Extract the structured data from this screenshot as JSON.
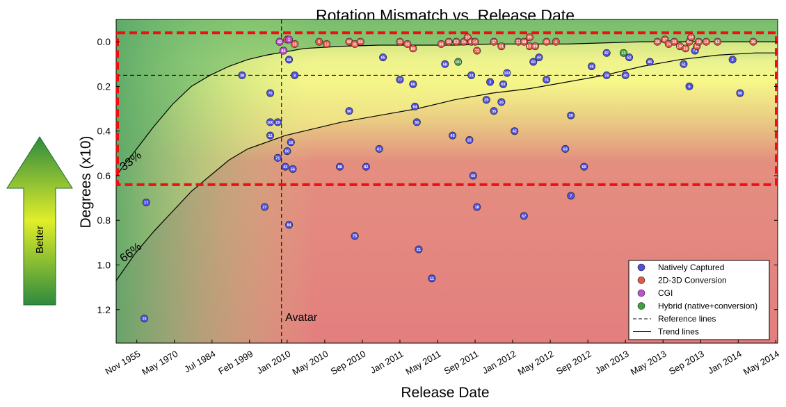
{
  "better_label": "Better",
  "chart_data": {
    "type": "scatter",
    "title": "Rotation Mismatch vs. Release Date",
    "xlabel": "Release Date",
    "ylabel": "Degrees (x10)",
    "y_inverted": true,
    "ylim": [
      1.35,
      -0.1
    ],
    "yticks": [
      "0.0",
      "0.2",
      "0.4",
      "0.6",
      "0.8",
      "1.0",
      "1.2"
    ],
    "xticks": [
      "Nov 1955",
      "May 1970",
      "Jul 1984",
      "Feb 1999",
      "Jan 2010",
      "May 2010",
      "Sep 2010",
      "Jan 2011",
      "May 2011",
      "Sep 2011",
      "Jan 2012",
      "May 2012",
      "Sep 2012",
      "Jan 2013",
      "May 2013",
      "Sep 2013",
      "Jan 2014",
      "May 2014"
    ],
    "xlim": [
      0,
      17.6
    ],
    "x_note": "x values are positions on the tick-indexed release-date axis (tick i at value i)",
    "percent_labels": [
      {
        "text": "33%",
        "x": 0.2,
        "y": 0.58
      },
      {
        "text": "66%",
        "x": 0.2,
        "y": 0.99
      }
    ],
    "annotation": {
      "text": "Avatar",
      "x": 4.5,
      "y": 1.25
    },
    "reference_lines": {
      "x": 4.4,
      "y": 0.15
    },
    "highlight_box": {
      "x_range": [
        0,
        17.6
      ],
      "y_range": [
        -0.04,
        0.64
      ]
    },
    "trend_lines": [
      {
        "name": "33%",
        "x": [
          0,
          0.5,
          1,
          1.5,
          2,
          2.5,
          3,
          3.5,
          4,
          4.5,
          5,
          6,
          7,
          8,
          9,
          10,
          12,
          14,
          17.6
        ],
        "y": [
          0.6,
          0.49,
          0.38,
          0.28,
          0.2,
          0.15,
          0.11,
          0.08,
          0.06,
          0.045,
          0.03,
          0.02,
          0.015,
          0.015,
          0.015,
          0.01,
          0.01,
          0.0,
          0.0
        ]
      },
      {
        "name": "66%",
        "x": [
          0,
          0.5,
          1,
          1.5,
          2,
          2.5,
          3,
          3.5,
          4,
          4.5,
          5,
          6,
          7,
          8,
          9,
          10,
          11,
          12,
          13,
          14,
          15,
          16,
          17,
          17.6
        ],
        "y": [
          1.07,
          0.95,
          0.85,
          0.76,
          0.67,
          0.6,
          0.53,
          0.48,
          0.45,
          0.42,
          0.4,
          0.36,
          0.33,
          0.3,
          0.26,
          0.23,
          0.21,
          0.18,
          0.15,
          0.11,
          0.08,
          0.06,
          0.05,
          0.05
        ]
      }
    ],
    "legend": {
      "placement": "bottom-right",
      "entries": [
        {
          "label": "Natively Captured",
          "kind": "marker",
          "color": "#5050e0"
        },
        {
          "label": "2D-3D Conversion",
          "kind": "marker",
          "color": "#e05a4a"
        },
        {
          "label": "CGI",
          "kind": "marker",
          "color": "#c050d0"
        },
        {
          "label": "Hybrid (native+conversion)",
          "kind": "marker",
          "color": "#40a040"
        },
        {
          "label": "Reference lines",
          "kind": "dashed"
        },
        {
          "label": "Trend lines",
          "kind": "solid"
        }
      ]
    },
    "series": [
      {
        "name": "Natively Captured",
        "color": "#5050e0",
        "points": [
          {
            "x": 0.8,
            "y": 0.72,
            "label": "17"
          },
          {
            "x": 0.75,
            "y": 1.24,
            "label": "15"
          },
          {
            "x": 3.35,
            "y": 0.15,
            "label": "38"
          },
          {
            "x": 3.95,
            "y": 0.74,
            "label": "27"
          },
          {
            "x": 4.1,
            "y": 0.23,
            "label": "70"
          },
          {
            "x": 4.1,
            "y": 0.36,
            "label": "100"
          },
          {
            "x": 4.1,
            "y": 0.42,
            "label": "12"
          },
          {
            "x": 4.3,
            "y": 0.36,
            "label": "29"
          },
          {
            "x": 4.3,
            "y": 0.52,
            "label": "71"
          },
          {
            "x": 4.5,
            "y": 0.56,
            "label": "43"
          },
          {
            "x": 4.6,
            "y": 0.08,
            "label": "68"
          },
          {
            "x": 4.55,
            "y": 0.49,
            "label": "50"
          },
          {
            "x": 4.65,
            "y": 0.45,
            "label": "16"
          },
          {
            "x": 4.7,
            "y": 0.57,
            "label": "56"
          },
          {
            "x": 4.6,
            "y": 0.82,
            "label": "84"
          },
          {
            "x": 4.75,
            "y": 0.15,
            "label": "8"
          },
          {
            "x": 5.95,
            "y": 0.56,
            "label": "88"
          },
          {
            "x": 6.2,
            "y": 0.31,
            "label": "96"
          },
          {
            "x": 6.35,
            "y": 0.87,
            "label": "75"
          },
          {
            "x": 6.65,
            "y": 0.56,
            "label": "82"
          },
          {
            "x": 7.0,
            "y": 0.48,
            "label": "61"
          },
          {
            "x": 7.1,
            "y": 0.07,
            "label": "65"
          },
          {
            "x": 7.55,
            "y": 0.17,
            "label": "77"
          },
          {
            "x": 7.9,
            "y": 0.19,
            "label": "66"
          },
          {
            "x": 7.95,
            "y": 0.29,
            "label": "64"
          },
          {
            "x": 8.0,
            "y": 0.36,
            "label": "55"
          },
          {
            "x": 8.05,
            "y": 0.93,
            "label": "21"
          },
          {
            "x": 8.4,
            "y": 1.06,
            "label": "11"
          },
          {
            "x": 8.75,
            "y": 0.1,
            "label": "58"
          },
          {
            "x": 8.95,
            "y": 0.42,
            "label": "45"
          },
          {
            "x": 9.4,
            "y": 0.44,
            "label": "22"
          },
          {
            "x": 9.45,
            "y": 0.15,
            "label": "24"
          },
          {
            "x": 9.5,
            "y": 0.6,
            "label": "60"
          },
          {
            "x": 9.6,
            "y": 0.74,
            "label": "18"
          },
          {
            "x": 9.85,
            "y": 0.26,
            "label": "25"
          },
          {
            "x": 9.95,
            "y": 0.18,
            "label": "3"
          },
          {
            "x": 10.05,
            "y": 0.31,
            "label": "35"
          },
          {
            "x": 10.25,
            "y": 0.27,
            "label": "26"
          },
          {
            "x": 10.3,
            "y": 0.19,
            "label": "83"
          },
          {
            "x": 10.4,
            "y": 0.14,
            "label": "103"
          },
          {
            "x": 10.6,
            "y": 0.4,
            "label": "42"
          },
          {
            "x": 10.85,
            "y": 0.78,
            "label": "57"
          },
          {
            "x": 11.1,
            "y": 0.09,
            "label": "60"
          },
          {
            "x": 11.25,
            "y": 0.07,
            "label": "44"
          },
          {
            "x": 11.45,
            "y": 0.17,
            "label": "76"
          },
          {
            "x": 11.95,
            "y": 0.48,
            "label": "63"
          },
          {
            "x": 12.1,
            "y": 0.33,
            "label": "20"
          },
          {
            "x": 12.1,
            "y": 0.69,
            "label": "7"
          },
          {
            "x": 12.45,
            "y": 0.56,
            "label": "69"
          },
          {
            "x": 12.65,
            "y": 0.11,
            "label": "46"
          },
          {
            "x": 13.05,
            "y": 0.05,
            "label": "87"
          },
          {
            "x": 13.05,
            "y": 0.15,
            "label": "78"
          },
          {
            "x": 13.55,
            "y": 0.15,
            "label": "40"
          },
          {
            "x": 13.65,
            "y": 0.07,
            "label": "52"
          },
          {
            "x": 14.2,
            "y": 0.09,
            "label": "85"
          },
          {
            "x": 15.1,
            "y": 0.1,
            "label": "51"
          },
          {
            "x": 15.25,
            "y": 0.2,
            "label": "6"
          },
          {
            "x": 15.4,
            "y": 0.04,
            "label": "73"
          },
          {
            "x": 16.4,
            "y": 0.08,
            "label": "2"
          },
          {
            "x": 16.6,
            "y": 0.23,
            "label": "90"
          }
        ]
      },
      {
        "name": "2D-3D Conversion",
        "color": "#e05a4a",
        "points": [
          {
            "x": 4.35,
            "y": 0.0,
            "label": "62"
          },
          {
            "x": 4.45,
            "y": 0.04,
            "label": "95"
          },
          {
            "x": 4.55,
            "y": -0.01,
            "label": "59"
          },
          {
            "x": 4.75,
            "y": 0.01,
            "label": "25"
          },
          {
            "x": 5.4,
            "y": 0.0,
            "label": "5"
          },
          {
            "x": 5.6,
            "y": 0.01,
            "label": "13"
          },
          {
            "x": 6.2,
            "y": 0.0,
            "label": "99"
          },
          {
            "x": 6.35,
            "y": 0.01,
            "label": "31"
          },
          {
            "x": 6.5,
            "y": 0.0,
            "label": "56"
          },
          {
            "x": 7.55,
            "y": 0.0,
            "label": "32"
          },
          {
            "x": 7.75,
            "y": 0.01,
            "label": "32"
          },
          {
            "x": 7.9,
            "y": 0.03,
            "label": "89"
          },
          {
            "x": 8.65,
            "y": 0.01,
            "label": "98"
          },
          {
            "x": 8.85,
            "y": 0.0,
            "label": "93"
          },
          {
            "x": 9.05,
            "y": 0.0,
            "label": "53"
          },
          {
            "x": 9.25,
            "y": 0.0,
            "label": "34"
          },
          {
            "x": 9.35,
            "y": -0.02,
            "label": "19"
          },
          {
            "x": 9.45,
            "y": 0.0,
            "label": "86"
          },
          {
            "x": 9.55,
            "y": 0.0,
            "label": "14"
          },
          {
            "x": 9.6,
            "y": 0.04,
            "label": "72"
          },
          {
            "x": 10.05,
            "y": 0.0,
            "label": "37"
          },
          {
            "x": 10.25,
            "y": 0.02,
            "label": "91"
          },
          {
            "x": 10.7,
            "y": 0.0,
            "label": "23"
          },
          {
            "x": 10.85,
            "y": 0.0,
            "label": "48"
          },
          {
            "x": 11.0,
            "y": -0.02,
            "label": "80"
          },
          {
            "x": 11.0,
            "y": 0.02,
            "label": "105"
          },
          {
            "x": 11.15,
            "y": 0.02,
            "label": "99"
          },
          {
            "x": 11.45,
            "y": 0.0,
            "label": "49"
          },
          {
            "x": 11.7,
            "y": 0.0,
            "label": "4"
          },
          {
            "x": 14.4,
            "y": 0.0,
            "label": "28"
          },
          {
            "x": 14.6,
            "y": -0.01,
            "label": "97"
          },
          {
            "x": 14.7,
            "y": 0.01,
            "label": "74"
          },
          {
            "x": 14.85,
            "y": 0.0,
            "label": "39"
          },
          {
            "x": 15.0,
            "y": 0.02,
            "label": "104"
          },
          {
            "x": 15.15,
            "y": 0.03,
            "label": "30"
          },
          {
            "x": 15.25,
            "y": 0.0,
            "label": "64"
          },
          {
            "x": 15.3,
            "y": -0.02,
            "label": "94"
          },
          {
            "x": 15.45,
            "y": 0.02,
            "label": "54"
          },
          {
            "x": 15.7,
            "y": 0.0,
            "label": "10"
          },
          {
            "x": 16.0,
            "y": 0.0,
            "label": "92"
          },
          {
            "x": 16.95,
            "y": 0.0,
            "label": "36"
          },
          {
            "x": 15.5,
            "y": 0.0,
            "label": "58"
          }
        ]
      },
      {
        "name": "CGI",
        "color": "#c050d0",
        "points": [
          {
            "x": 4.35,
            "y": 0.0,
            "label": "82"
          },
          {
            "x": 4.6,
            "y": -0.01,
            "label": "1"
          },
          {
            "x": 4.45,
            "y": 0.04,
            "label": "84"
          }
        ]
      },
      {
        "name": "Hybrid (native+conversion)",
        "color": "#40a040",
        "points": [
          {
            "x": 9.1,
            "y": 0.09,
            "label": "101"
          },
          {
            "x": 13.5,
            "y": 0.05,
            "label": "33"
          }
        ]
      }
    ]
  }
}
